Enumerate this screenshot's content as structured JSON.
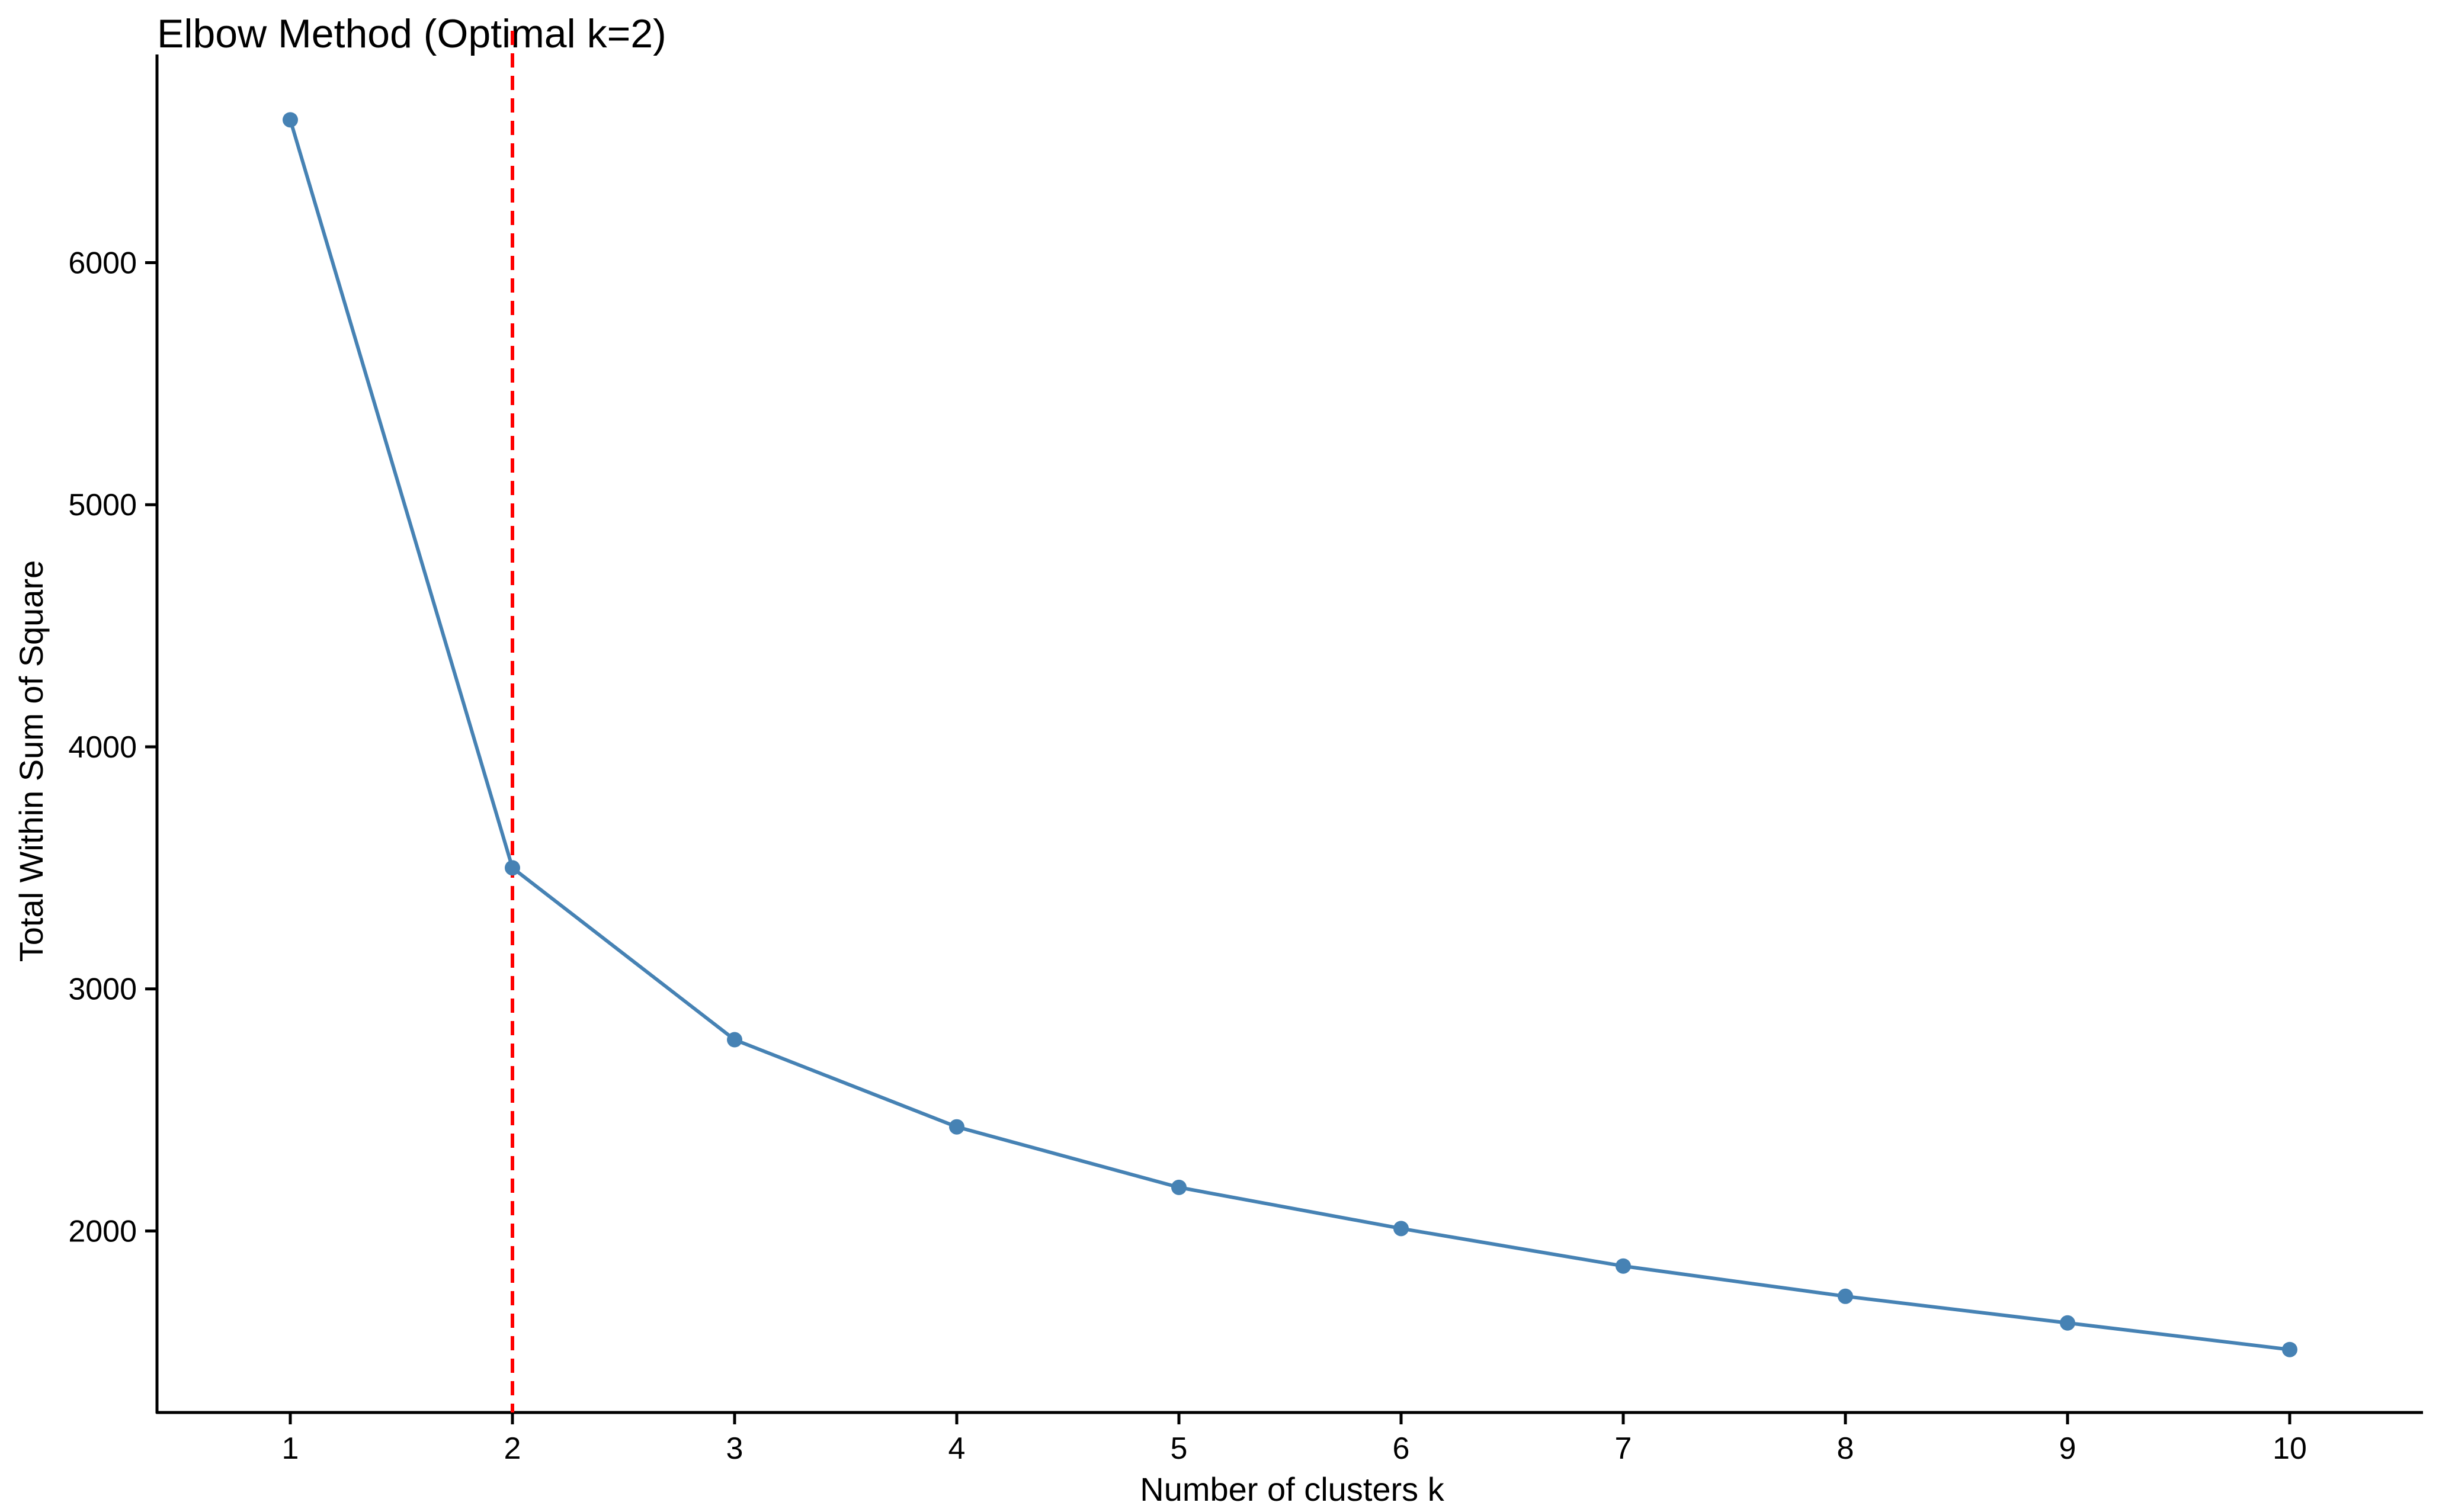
{
  "chart_data": {
    "type": "line",
    "title": "Elbow Method (Optimal k=2)",
    "xlabel": "Number of clusters k",
    "ylabel": "Total Within Sum of Square",
    "x": [
      1,
      2,
      3,
      4,
      5,
      6,
      7,
      8,
      9,
      10
    ],
    "series": [
      {
        "values": [
          6590,
          3500,
          2790,
          2430,
          2180,
          2010,
          1855,
          1730,
          1620,
          1510
        ],
        "color": "#4682B4"
      }
    ],
    "xlim": [
      0.4,
      10.6
    ],
    "ylim": [
      1250,
      6860
    ],
    "x_ticks": [
      1,
      2,
      3,
      4,
      5,
      6,
      7,
      8,
      9,
      10
    ],
    "x_tick_labels": [
      "1",
      "2",
      "3",
      "4",
      "5",
      "6",
      "7",
      "8",
      "9",
      "10"
    ],
    "y_ticks": [
      2000,
      3000,
      4000,
      5000,
      6000
    ],
    "y_tick_labels": [
      "2000",
      "3000",
      "4000",
      "5000",
      "6000"
    ],
    "vline": {
      "x": 2,
      "color": "#ff0000",
      "style": "dashed"
    },
    "grid": false,
    "legend": "none",
    "axis_color": "#000000"
  }
}
